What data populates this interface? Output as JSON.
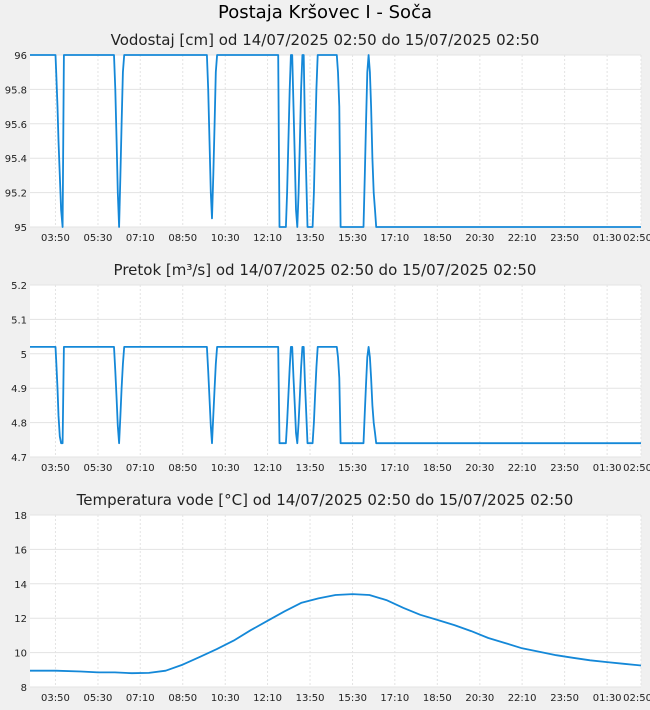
{
  "page": {
    "title": "Postaja Kršovec I - Soča"
  },
  "colors": {
    "line": "#1488d8",
    "grid": "#e3e3e3",
    "plot_bg": "#ffffff",
    "page_bg": "#f0f0f0"
  },
  "x_ticks": [
    "03:50",
    "05:30",
    "07:10",
    "08:50",
    "10:30",
    "12:10",
    "13:50",
    "15:30",
    "17:10",
    "18:50",
    "20:30",
    "22:10",
    "23:50",
    "01:30",
    "02:50"
  ],
  "chart_data": [
    {
      "type": "line",
      "title": "Vodostaj [cm] od 14/07/2025 02:50 do 15/07/2025 02:50",
      "ylim": [
        95,
        96
      ],
      "y_ticks": [
        "96",
        "95.8",
        "95.6",
        "95.4",
        "95.2",
        "95"
      ],
      "x_tick_hours": [
        1,
        2.67,
        4.33,
        6,
        7.67,
        9.33,
        11,
        12.67,
        14.33,
        16,
        17.67,
        19.33,
        21,
        22.67,
        24
      ],
      "series": [
        {
          "x": [
            0,
            1,
            1.03,
            1.08,
            1.12,
            1.17,
            1.22,
            1.28,
            1.33,
            3.3,
            3.35,
            3.4,
            3.45,
            3.5,
            3.55,
            3.6,
            3.65,
            3.7,
            6.95,
            7,
            7.05,
            7.1,
            7.15,
            7.2,
            7.25,
            7.3,
            7.35,
            9.75,
            9.8,
            10.05,
            10.1,
            10.15,
            10.2,
            10.25,
            10.3,
            10.35,
            10.4,
            10.45,
            10.5,
            10.55,
            10.6,
            10.65,
            10.7,
            10.75,
            10.8,
            10.85,
            10.9,
            11.0,
            11.1,
            11.15,
            11.2,
            11.25,
            11.3,
            11.35,
            11.4,
            11.45,
            12.05,
            12.1,
            12.15,
            12.2,
            12.25,
            13.1,
            13.15,
            13.2,
            13.25,
            13.3,
            13.35,
            13.4,
            13.45,
            13.5,
            13.55,
            13.6,
            13.65,
            13.7,
            24
          ],
          "values": [
            96,
            96,
            95.9,
            95.7,
            95.5,
            95.3,
            95.1,
            95,
            96,
            96,
            95.8,
            95.5,
            95.2,
            95,
            95.3,
            95.6,
            95.9,
            96,
            96,
            95.8,
            95.5,
            95.2,
            95.05,
            95.3,
            95.6,
            95.9,
            96,
            96,
            95,
            95,
            95.2,
            95.5,
            95.8,
            96,
            96,
            95.7,
            95.4,
            95.1,
            95,
            95.2,
            95.5,
            95.8,
            96,
            96,
            95.6,
            95.3,
            95,
            95,
            95,
            95.2,
            95.5,
            95.8,
            96,
            96,
            96,
            96,
            96,
            95.9,
            95.7,
            95,
            95,
            95,
            95.3,
            95.6,
            95.9,
            96,
            95.9,
            95.7,
            95.4,
            95.2,
            95.1,
            95,
            95,
            95,
            95
          ]
        }
      ]
    },
    {
      "type": "line",
      "title": "Pretok [m³/s] od 14/07/2025 02:50 do 15/07/2025 02:50",
      "ylim": [
        4.7,
        5.2
      ],
      "y_ticks": [
        "5.2",
        "5.1",
        "5",
        "4.9",
        "4.8",
        "4.7"
      ],
      "x_tick_hours": [
        1,
        2.67,
        4.33,
        6,
        7.67,
        9.33,
        11,
        12.67,
        14.33,
        16,
        17.67,
        19.33,
        21,
        22.67,
        24
      ],
      "series": [
        {
          "x": [
            0,
            1,
            1.03,
            1.08,
            1.12,
            1.17,
            1.22,
            1.28,
            1.33,
            3.3,
            3.35,
            3.4,
            3.45,
            3.5,
            3.55,
            3.6,
            3.65,
            3.7,
            6.95,
            7,
            7.05,
            7.1,
            7.15,
            7.2,
            7.25,
            7.3,
            7.35,
            9.75,
            9.8,
            10.05,
            10.1,
            10.15,
            10.2,
            10.25,
            10.3,
            10.35,
            10.4,
            10.45,
            10.5,
            10.55,
            10.6,
            10.65,
            10.7,
            10.75,
            10.8,
            10.85,
            10.9,
            11.0,
            11.1,
            11.15,
            11.2,
            11.25,
            11.3,
            11.35,
            11.4,
            11.45,
            12.05,
            12.1,
            12.15,
            12.2,
            12.25,
            13.1,
            13.15,
            13.2,
            13.25,
            13.3,
            13.35,
            13.4,
            13.45,
            13.5,
            13.55,
            13.6,
            13.65,
            13.7,
            24
          ],
          "values": [
            5.02,
            5.02,
            4.98,
            4.9,
            4.82,
            4.76,
            4.74,
            4.74,
            5.02,
            5.02,
            4.95,
            4.87,
            4.79,
            4.74,
            4.82,
            4.9,
            4.97,
            5.02,
            5.02,
            4.95,
            4.87,
            4.79,
            4.74,
            4.82,
            4.9,
            4.97,
            5.02,
            5.02,
            4.74,
            4.74,
            4.8,
            4.88,
            4.96,
            5.02,
            5.02,
            4.93,
            4.85,
            4.77,
            4.74,
            4.8,
            4.88,
            4.96,
            5.02,
            5.02,
            4.92,
            4.83,
            4.74,
            4.74,
            4.74,
            4.8,
            4.88,
            4.96,
            5.02,
            5.02,
            5.02,
            5.02,
            5.02,
            4.99,
            4.93,
            4.74,
            4.74,
            4.74,
            4.83,
            4.91,
            4.99,
            5.02,
            4.99,
            4.93,
            4.85,
            4.8,
            4.77,
            4.74,
            4.74,
            4.74,
            4.74
          ]
        }
      ]
    },
    {
      "type": "line",
      "title": "Temperatura vode [°C] od 14/07/2025 02:50 do 15/07/2025 02:50",
      "ylim": [
        8,
        18
      ],
      "y_ticks": [
        "18",
        "16",
        "14",
        "12",
        "10",
        "8"
      ],
      "x_tick_hours": [
        1,
        2.67,
        4.33,
        6,
        7.67,
        9.33,
        11,
        12.67,
        14.33,
        16,
        17.67,
        19.33,
        21,
        22.67,
        24
      ],
      "series": [
        {
          "x": [
            0,
            1,
            2,
            2.67,
            3.33,
            4,
            4.67,
            5.33,
            6,
            6.67,
            7.33,
            8,
            8.67,
            9.33,
            10,
            10.67,
            11.33,
            12,
            12.67,
            13.33,
            14,
            14.67,
            15.33,
            16,
            16.67,
            17.33,
            18,
            18.67,
            19.33,
            20,
            20.67,
            21.33,
            22,
            22.67,
            23.33,
            24
          ],
          "values": [
            8.95,
            8.95,
            8.9,
            8.85,
            8.85,
            8.8,
            8.82,
            8.95,
            9.3,
            9.75,
            10.2,
            10.7,
            11.3,
            11.85,
            12.4,
            12.9,
            13.15,
            13.35,
            13.4,
            13.35,
            13.05,
            12.6,
            12.2,
            11.9,
            11.6,
            11.25,
            10.85,
            10.55,
            10.25,
            10.05,
            9.85,
            9.7,
            9.55,
            9.45,
            9.35,
            9.25
          ]
        }
      ]
    }
  ]
}
